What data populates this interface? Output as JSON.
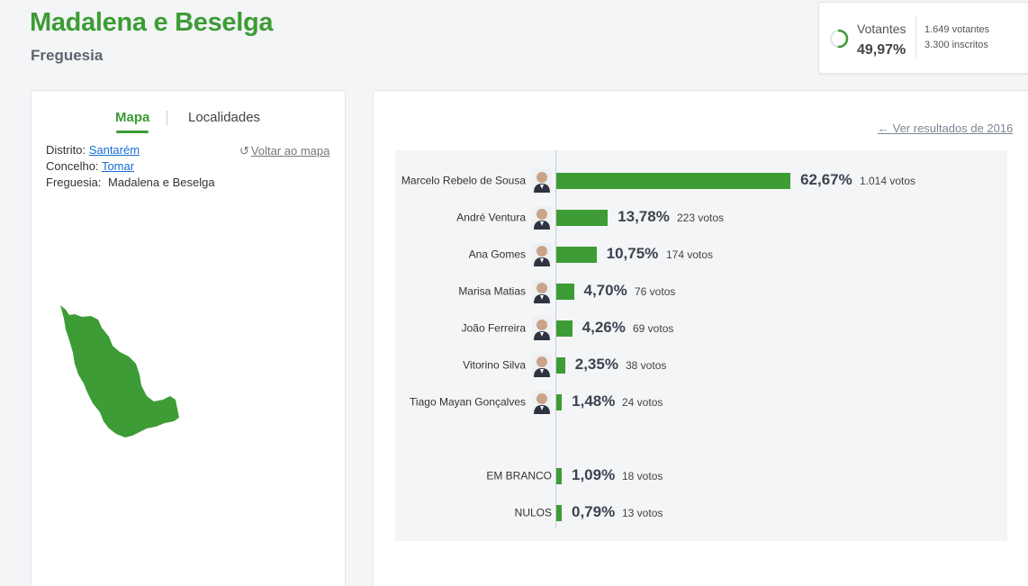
{
  "header": {
    "title": "Madalena e Beselga",
    "subtitle": "Freguesia"
  },
  "turnout": {
    "label": "Votantes",
    "percent": "49,97%",
    "voters": "1.649 votantes",
    "registered": "3.300 inscritos",
    "ring_fraction": 0.4997
  },
  "left_panel": {
    "tabs": [
      "Mapa",
      "Localidades"
    ],
    "active_tab": "Mapa",
    "distrito_label": "Distrito:",
    "distrito_value": "Santarém",
    "concelho_label": "Concelho:",
    "concelho_value": "Tomar",
    "freguesia_label": "Freguesia:",
    "freguesia_value": "Madalena e Beselga",
    "back_to_map": "Voltar ao mapa"
  },
  "results": {
    "previous_link": "Ver resultados de 2016",
    "accent_color": "#3d9c35",
    "candidates": [
      {
        "name": "Marcelo Rebelo de Sousa",
        "percent_label": "62,67%",
        "percent": 62.67,
        "votes": "1.014 votos",
        "avatar": "portrait-icon"
      },
      {
        "name": "André Ventura",
        "percent_label": "13,78%",
        "percent": 13.78,
        "votes": "223 votos",
        "avatar": "portrait-icon"
      },
      {
        "name": "Ana Gomes",
        "percent_label": "10,75%",
        "percent": 10.75,
        "votes": "174 votos",
        "avatar": "portrait-icon"
      },
      {
        "name": "Marisa Matias",
        "percent_label": "4,70%",
        "percent": 4.7,
        "votes": "76 votos",
        "avatar": "portrait-icon"
      },
      {
        "name": "João Ferreira",
        "percent_label": "4,26%",
        "percent": 4.26,
        "votes": "69 votos",
        "avatar": "portrait-icon"
      },
      {
        "name": "Vitorino Silva",
        "percent_label": "2,35%",
        "percent": 2.35,
        "votes": "38 votos",
        "avatar": "portrait-icon"
      },
      {
        "name": "Tiago Mayan Gonçalves",
        "percent_label": "1,48%",
        "percent": 1.48,
        "votes": "24 votos",
        "avatar": "portrait-icon"
      }
    ],
    "others": [
      {
        "name": "EM BRANCO",
        "percent_label": "1,09%",
        "percent": 1.09,
        "votes": "18 votos"
      },
      {
        "name": "NULOS",
        "percent_label": "0,79%",
        "percent": 0.79,
        "votes": "13 votos"
      }
    ]
  }
}
